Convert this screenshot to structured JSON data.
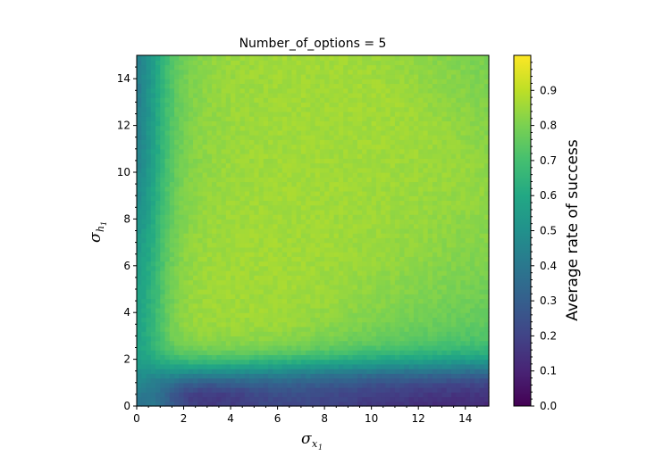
{
  "chart_data": {
    "type": "heatmap",
    "title": "Number_of_options = 5",
    "xlabel": {
      "base": "σ",
      "sub": "x",
      "subsub": "1"
    },
    "ylabel": {
      "base": "σ",
      "sub": "h",
      "subsub": "1"
    },
    "xlim": [
      0,
      15
    ],
    "ylim": [
      0,
      15
    ],
    "x_ticks": [
      "0",
      "2",
      "4",
      "6",
      "8",
      "10",
      "12",
      "14"
    ],
    "y_ticks": [
      "0",
      "2",
      "4",
      "6",
      "8",
      "10",
      "12",
      "14"
    ],
    "grid_resolution": 75,
    "colormap": "viridis",
    "colorbar": {
      "label": "Average rate of success",
      "range": [
        0.0,
        1.0
      ],
      "ticks": [
        "0.0",
        "0.1",
        "0.2",
        "0.3",
        "0.4",
        "0.5",
        "0.6",
        "0.7",
        "0.8",
        "0.9"
      ]
    },
    "surface_model": {
      "description": "approximate average rate of success as a function of sigma_x1 (x) and sigma_h1 (y)",
      "plateau": 0.86,
      "corner_origin": 0.38,
      "low_y_band_min": 0.28,
      "low_x_band": 0.55,
      "far_high_y_low_x": 0.45,
      "lower_right": 0.55
    }
  }
}
